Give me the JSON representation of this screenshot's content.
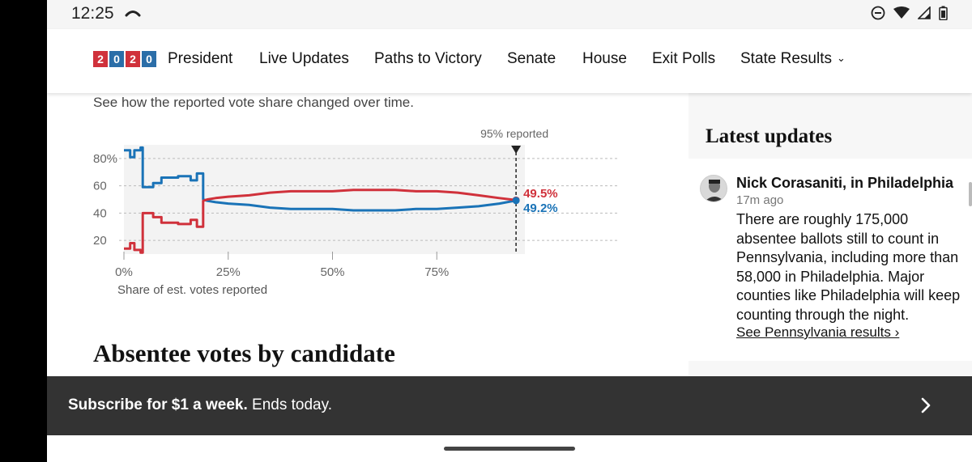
{
  "status_bar": {
    "time": "12:25"
  },
  "nav": {
    "logo_digits": [
      "2",
      "0",
      "2",
      "0"
    ],
    "items": [
      "President",
      "Live Updates",
      "Paths to Victory",
      "Senate",
      "House",
      "Exit Polls",
      "State Results"
    ]
  },
  "main": {
    "subtitle": "See how the reported vote share changed over time.",
    "section_heading": "Absentee votes by candidate"
  },
  "chart_data": {
    "type": "line",
    "title": "",
    "xlabel": "Share of est. votes reported",
    "ylabel": "",
    "annotation": "95% reported",
    "x_ticks": [
      "0%",
      "25%",
      "50%",
      "75%"
    ],
    "y_ticks": [
      "80%",
      "60",
      "40",
      "20"
    ],
    "xlim": [
      0,
      100
    ],
    "ylim": [
      10,
      90
    ],
    "end_labels": {
      "red": "49.5%",
      "blue": "49.2%"
    },
    "series": [
      {
        "name": "blue",
        "color": "#1a73b7",
        "x": [
          0,
          1.5,
          1.5,
          2.5,
          2.5,
          4,
          4,
          4.5,
          4.5,
          7,
          7,
          9,
          9,
          13,
          13,
          16,
          16,
          17.5,
          17.5,
          19,
          19,
          20,
          22,
          25,
          30,
          35,
          40,
          45,
          50,
          55,
          60,
          65,
          70,
          75,
          80,
          85,
          90,
          94
        ],
        "values": [
          86,
          86,
          81,
          81,
          86,
          86,
          88,
          88,
          59,
          59,
          62,
          62,
          66,
          66,
          67,
          67,
          64,
          64,
          69,
          69,
          50,
          49,
          48,
          47,
          46,
          44,
          43,
          43,
          43,
          42,
          42,
          42,
          43,
          43,
          44,
          45,
          47,
          49.2
        ]
      },
      {
        "name": "red",
        "color": "#d0313b",
        "x": [
          0,
          1.5,
          1.5,
          2.5,
          2.5,
          4,
          4,
          4.5,
          4.5,
          7,
          7,
          9,
          9,
          13,
          13,
          16,
          16,
          17.5,
          17.5,
          19,
          19,
          20,
          22,
          25,
          30,
          35,
          40,
          45,
          50,
          55,
          60,
          65,
          70,
          75,
          80,
          85,
          90,
          94
        ],
        "values": [
          14,
          14,
          18,
          18,
          13,
          13,
          11,
          11,
          40,
          40,
          37,
          37,
          33,
          33,
          32,
          32,
          35,
          35,
          30,
          30,
          49,
          50,
          51,
          52,
          53,
          55,
          56,
          56,
          56,
          57,
          57,
          57,
          56,
          56,
          55,
          53,
          51,
          49.5
        ]
      }
    ]
  },
  "sidebar": {
    "heading": "Latest updates",
    "author": "Nick Corasaniti, in Philadelphia",
    "time_ago": "17m ago",
    "body": "There are roughly 175,000 absentee ballots still to count in Pennsylvania, including more than 58,000 in Philadelphia. Major counties like Philadelphia will keep counting through the night.",
    "link": "See Pennsylvania results ›"
  },
  "subscribe": {
    "bold": "Subscribe for $1 a week.",
    "rest": " Ends today."
  },
  "colors": {
    "red": "#d0313b",
    "blue": "#1a73b7",
    "logo_blue": "#2b6ea8"
  }
}
